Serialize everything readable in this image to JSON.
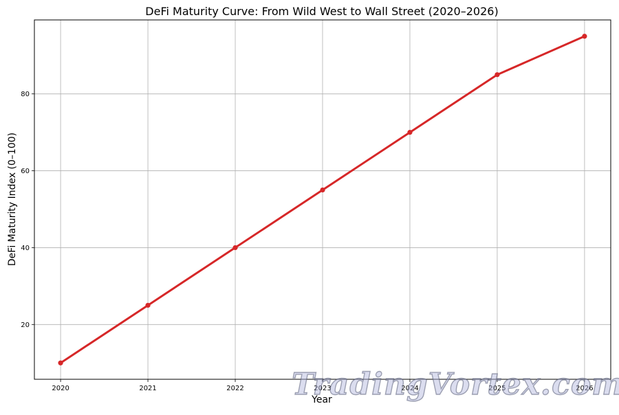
{
  "chart_data": {
    "type": "line",
    "title": "DeFi Maturity Curve: From Wild West to Wall Street (2020–2026)",
    "xlabel": "Year",
    "ylabel": "DeFi Maturity Index (0–100)",
    "x": [
      2020,
      2021,
      2022,
      2023,
      2024,
      2025,
      2026
    ],
    "x_tick_labels": [
      "2020",
      "2021",
      "2022",
      "2023",
      "2024",
      "2025",
      "2026"
    ],
    "y_ticks": [
      20,
      40,
      60,
      80
    ],
    "y_tick_labels": [
      "20",
      "40",
      "60",
      "80"
    ],
    "series": [
      {
        "values": [
          10,
          25,
          40,
          55,
          70,
          85,
          95
        ],
        "color": "#d62728",
        "marker": "circle"
      }
    ],
    "xlim": [
      2019.7,
      2026.3
    ],
    "ylim": [
      5.75,
      99.25
    ],
    "grid": true,
    "legend": "none"
  },
  "watermark": {
    "text": "TradingVortex.com"
  }
}
